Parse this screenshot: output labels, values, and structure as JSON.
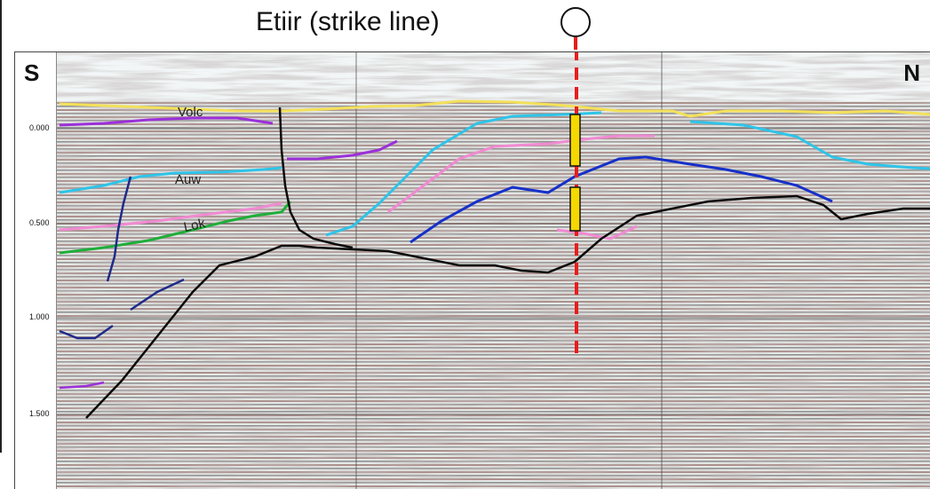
{
  "title": "Etiir (strike line)",
  "panel": {
    "left_label": "S",
    "right_label": "N"
  },
  "time_ticks": [
    "0.000",
    "0.500",
    "1.000",
    "1.500"
  ],
  "horizons": [
    {
      "name": "Volc",
      "color": "#9b30d9"
    },
    {
      "name": "Auw",
      "color": "#2ec4e8"
    },
    {
      "name": "Lok",
      "color": "#1fae3a"
    }
  ],
  "colors": {
    "seafloor": "#f3e15a",
    "fault": "#0a0a0a",
    "well": "#e81c1c",
    "well_marker": "#f5d800",
    "pink_horizon": "#f08ad2",
    "blue_horizon": "#1630c9",
    "navy_fault": "#1e2a8a"
  },
  "icons": {
    "well_symbol": "circle-icon"
  }
}
